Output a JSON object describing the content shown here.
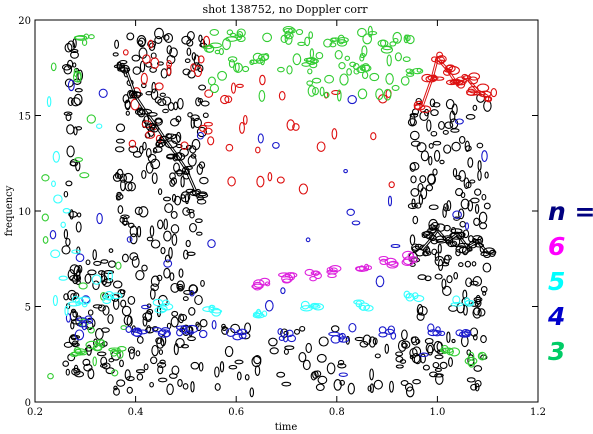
{
  "chart_data": {
    "type": "scatter",
    "title": "shot  138752, no Doppler corr",
    "xlabel": "time",
    "ylabel": "frequency",
    "xlim": [
      0.2,
      1.2
    ],
    "ylim": [
      0,
      20
    ],
    "x_ticks": [
      0.2,
      0.4,
      0.6,
      0.8,
      1.0,
      1.2
    ],
    "y_ticks": [
      0,
      5,
      10,
      15,
      20
    ],
    "x_tick_labels": [
      "0.2",
      "0.4",
      "0.6",
      "0.8",
      "1.0",
      "1.2"
    ],
    "y_tick_labels": [
      "0",
      "5",
      "10",
      "15",
      "20"
    ],
    "grid": false,
    "legend_placement": "right outside",
    "legend_title": "n =",
    "legend": [
      {
        "label": "6",
        "color": "#ff00ff"
      },
      {
        "label": "5",
        "color": "#00ffff"
      },
      {
        "label": "4",
        "color": "#0000cc"
      },
      {
        "label": "3",
        "color": "#00cc66"
      }
    ],
    "legend_title_color": "#000080",
    "series": [
      {
        "mode": "n=6",
        "color": "#dd22dd",
        "x": [
          0.65,
          0.7,
          0.75,
          0.8,
          0.85,
          0.9,
          0.95
        ],
        "y": [
          6.2,
          6.5,
          6.6,
          6.8,
          7.0,
          7.3,
          7.5
        ]
      },
      {
        "mode": "n=5",
        "color": "#33ffff",
        "x": [
          0.29,
          0.35,
          0.45,
          0.55,
          0.65,
          0.75,
          0.85,
          0.95,
          1.05
        ],
        "y": [
          5.2,
          5.4,
          5.0,
          4.8,
          4.7,
          4.9,
          5.1,
          5.6,
          5.2
        ]
      },
      {
        "mode": "n=4",
        "color": "#1a1acc",
        "x": [
          0.3,
          0.4,
          0.45,
          0.5,
          0.6,
          0.7,
          0.8,
          0.9,
          1.0,
          1.05
        ],
        "y": [
          4.2,
          3.8,
          3.6,
          3.7,
          3.6,
          3.5,
          3.4,
          3.6,
          3.8,
          3.7
        ]
      },
      {
        "mode": "n=3",
        "color": "#33cc33",
        "x": [
          0.28,
          0.32,
          0.36,
          0.3,
          0.55,
          0.6,
          0.65,
          0.7,
          0.75,
          0.8,
          0.85,
          0.9,
          0.95,
          1.02,
          1.08
        ],
        "y": [
          2.5,
          3.0,
          2.6,
          19.0,
          18.5,
          19.2,
          18.0,
          19.3,
          17.8,
          18.8,
          17.5,
          18.6,
          17.2,
          2.8,
          2.2
        ]
      },
      {
        "mode": "red",
        "color": "#dd1111",
        "x": [
          0.97,
          0.99,
          1.0,
          1.02,
          1.04,
          1.06,
          1.08,
          1.1
        ],
        "y": [
          15.5,
          17.0,
          18.0,
          17.4,
          16.6,
          16.9,
          16.3,
          16.0
        ]
      },
      {
        "mode": "black-upper",
        "color": "#000000",
        "x": [
          0.38,
          0.4,
          0.42,
          0.44,
          0.46,
          0.48,
          0.5,
          0.52
        ],
        "y": [
          17.5,
          16.0,
          15.2,
          14.5,
          13.7,
          13.0,
          12.2,
          11.0
        ]
      },
      {
        "mode": "black-lower",
        "color": "#000000",
        "x": [
          0.97,
          0.99,
          1.0,
          1.02,
          1.04,
          1.06,
          1.08,
          1.1
        ],
        "y": [
          8.0,
          8.6,
          9.0,
          8.4,
          8.8,
          8.1,
          8.4,
          7.8
        ]
      }
    ]
  }
}
